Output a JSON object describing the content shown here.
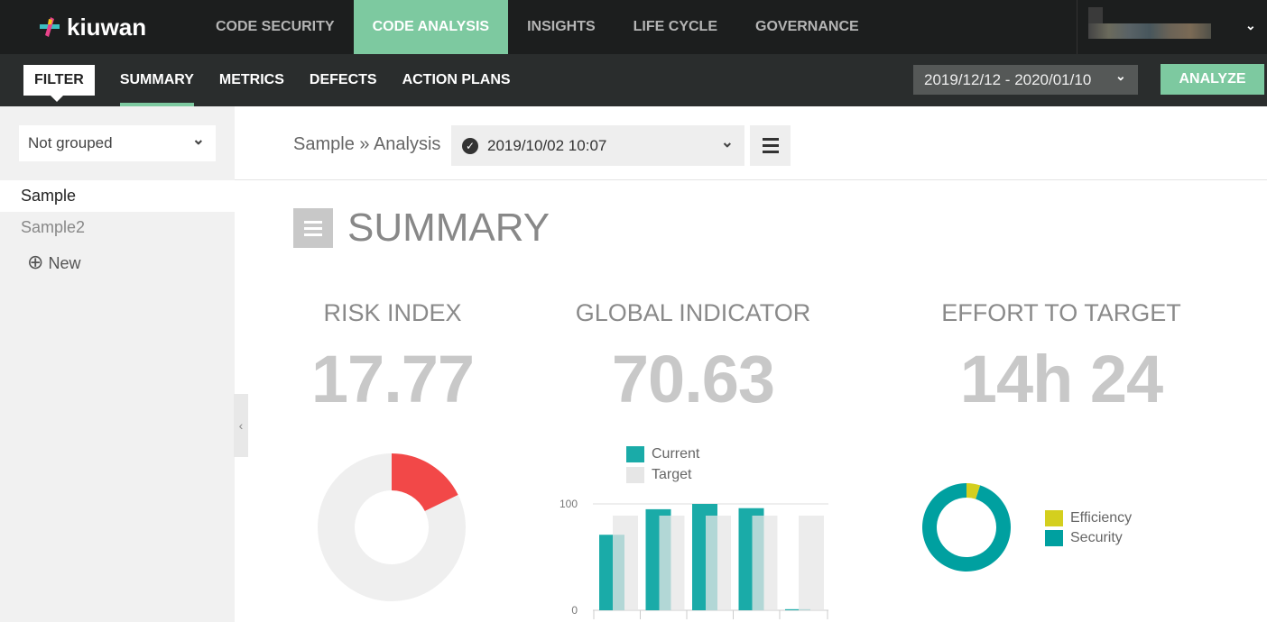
{
  "brand": {
    "name": "kiuwan"
  },
  "top_nav": [
    {
      "label": "CODE SECURITY"
    },
    {
      "label": "CODE ANALYSIS",
      "active": true
    },
    {
      "label": "INSIGHTS"
    },
    {
      "label": "LIFE CYCLE"
    },
    {
      "label": "GOVERNANCE"
    }
  ],
  "sub_nav": {
    "filter": "FILTER",
    "items": [
      {
        "label": "SUMMARY",
        "active": true
      },
      {
        "label": "METRICS"
      },
      {
        "label": "DEFECTS"
      },
      {
        "label": "ACTION PLANS"
      }
    ]
  },
  "date_range": "2019/12/12 - 2020/01/10",
  "analyze_label": "ANALYZE",
  "sidebar": {
    "grouping": "Not grouped",
    "apps": [
      {
        "label": "Sample",
        "selected": true
      },
      {
        "label": "Sample2"
      }
    ],
    "new_label": "New"
  },
  "breadcrumb": "Sample » Analysis",
  "analysis_select": "2019/10/02 10:07",
  "page_title": "SUMMARY",
  "kpis": {
    "risk": {
      "title": "RISK INDEX",
      "value": "17.77"
    },
    "global": {
      "title": "GLOBAL INDICATOR",
      "value": "70.63"
    },
    "effort": {
      "title": "EFFORT TO TARGET",
      "value": "14h 24"
    }
  },
  "colors": {
    "accent": "#7dc9a0",
    "teal": "#1aaba8",
    "risk": "#f24848",
    "efficiency": "#d4cf1e",
    "security": "#00a0a0"
  },
  "chart_data": [
    {
      "type": "pie",
      "donut": true,
      "slices": [
        {
          "value": 17.77,
          "color": "#f24848"
        },
        {
          "value": 82.23,
          "color": "#efefef"
        }
      ]
    },
    {
      "type": "bar",
      "categories": [
        "",
        "",
        "",
        "",
        ""
      ],
      "ylim": [
        0,
        100
      ],
      "yticks": [
        "0",
        "100"
      ],
      "legend": "top",
      "series": [
        {
          "name": "Current",
          "color": "#1aaba8",
          "values": [
            71,
            95,
            100,
            96,
            1
          ]
        },
        {
          "name": "Target",
          "color": "#e6e6e6",
          "values": [
            89,
            89,
            89,
            89,
            89
          ]
        }
      ]
    },
    {
      "type": "pie",
      "donut": true,
      "legend": "right",
      "slices": [
        {
          "name": "Efficiency",
          "value": 5,
          "color": "#d4cf1e"
        },
        {
          "name": "Security",
          "value": 95,
          "color": "#00a0a0"
        }
      ]
    }
  ]
}
